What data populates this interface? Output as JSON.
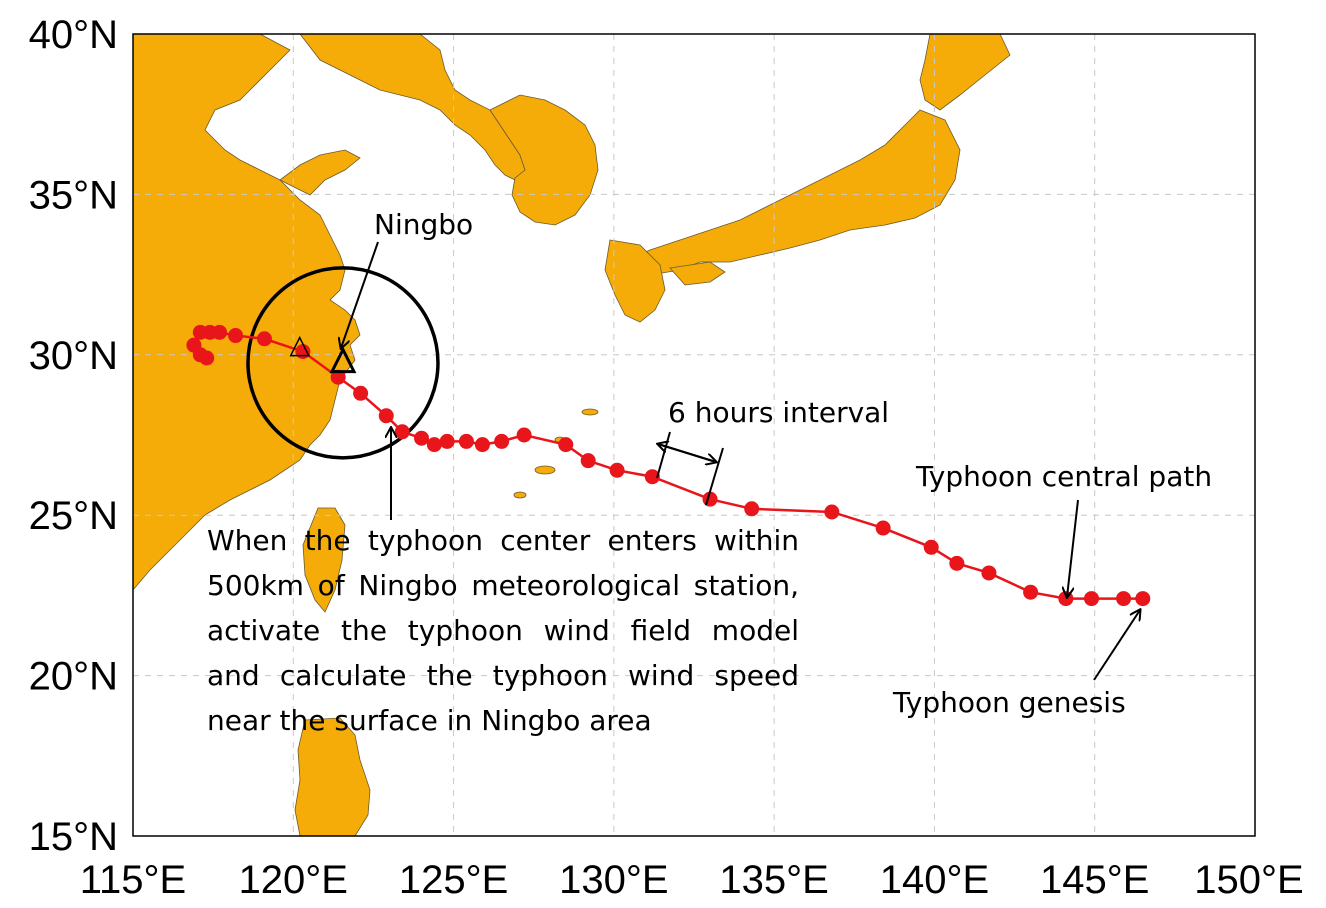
{
  "map": {
    "lon_range": [
      115,
      150
    ],
    "lat_range": [
      15,
      40
    ],
    "land_color": "#F5AC08",
    "sea_color": "#FFFFFF",
    "track_color": "#E8151B",
    "gridlines": "dashed",
    "lon_ticks": [
      {
        "value": 115,
        "label": "115°E"
      },
      {
        "value": 120,
        "label": "120°E"
      },
      {
        "value": 125,
        "label": "125°E"
      },
      {
        "value": 130,
        "label": "130°E"
      },
      {
        "value": 135,
        "label": "135°E"
      },
      {
        "value": 140,
        "label": "140°E"
      },
      {
        "value": 145,
        "label": "145°E"
      },
      {
        "value": 150,
        "label": "150°E"
      }
    ],
    "lat_ticks": [
      {
        "value": 40,
        "label": "40°N"
      },
      {
        "value": 35,
        "label": "35°N"
      },
      {
        "value": 30,
        "label": "30°N"
      },
      {
        "value": 25,
        "label": "25°N"
      },
      {
        "value": 20,
        "label": "20°N"
      },
      {
        "value": 15,
        "label": "15°N"
      }
    ],
    "track": [
      [
        146.5,
        22.4
      ],
      [
        145.9,
        22.4
      ],
      [
        144.9,
        22.4
      ],
      [
        144.1,
        22.4
      ],
      [
        143.0,
        22.6
      ],
      [
        141.7,
        23.2
      ],
      [
        140.7,
        23.5
      ],
      [
        139.9,
        24.0
      ],
      [
        138.4,
        24.6
      ],
      [
        136.8,
        25.1
      ],
      [
        134.3,
        25.2
      ],
      [
        133.0,
        25.5
      ],
      [
        131.2,
        26.2
      ],
      [
        130.1,
        26.4
      ],
      [
        129.2,
        26.7
      ],
      [
        128.5,
        27.2
      ],
      [
        127.2,
        27.5
      ],
      [
        126.5,
        27.3
      ],
      [
        125.9,
        27.2
      ],
      [
        125.4,
        27.3
      ],
      [
        124.8,
        27.3
      ],
      [
        124.4,
        27.2
      ],
      [
        124.0,
        27.4
      ],
      [
        123.4,
        27.6
      ],
      [
        122.9,
        28.1
      ],
      [
        122.1,
        28.8
      ],
      [
        121.4,
        29.3
      ],
      [
        120.3,
        30.1
      ],
      [
        119.1,
        30.5
      ],
      [
        118.2,
        30.6
      ],
      [
        117.7,
        30.7
      ],
      [
        117.4,
        30.7
      ],
      [
        117.1,
        30.7
      ],
      [
        116.9,
        30.3
      ],
      [
        117.1,
        30.0
      ],
      [
        117.3,
        29.9
      ]
    ],
    "stations": [
      {
        "lon": 121.55,
        "lat": 29.75,
        "role": "Ningbo"
      },
      {
        "lon": 120.2,
        "lat": 30.2,
        "role": "secondary"
      }
    ],
    "circle": {
      "lon": 121.55,
      "lat": 29.75
    }
  },
  "annotations": {
    "ningbo": "Ningbo",
    "interval": "6 hours interval",
    "path": "Typhoon central path",
    "genesis": "Typhoon genesis",
    "note": "When the typhoon center enters within 500km of Ningbo meteorological station, activate the typhoon wind field model and calculate the typhoon wind speed near the surface in Ningbo area"
  }
}
